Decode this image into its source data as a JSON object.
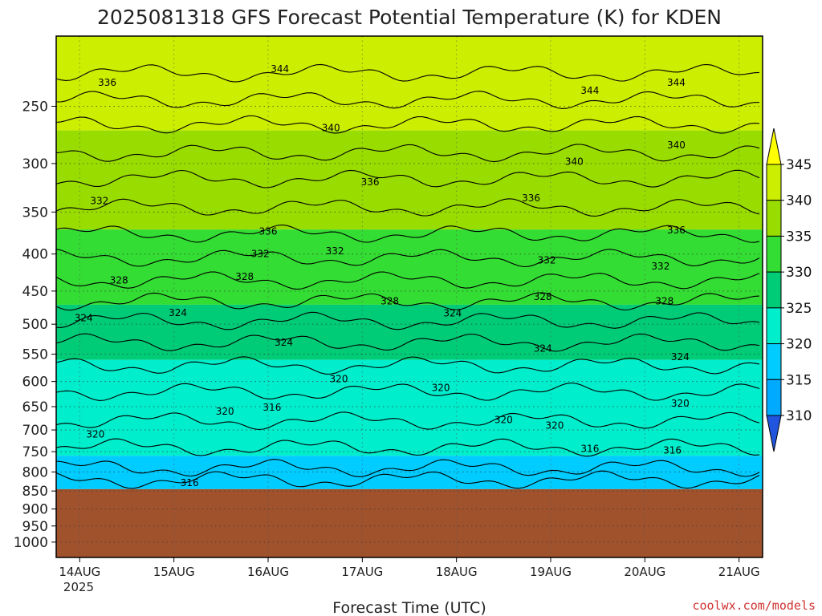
{
  "chart_data": {
    "type": "heatmap",
    "title": "2025081318 GFS Forecast Potential Temperature (K) for KDEN",
    "xlabel": "Forecast Time (UTC)",
    "ylabel": "",
    "x_ticks": [
      "14AUG",
      "15AUG",
      "16AUG",
      "17AUG",
      "18AUG",
      "19AUG",
      "20AUG",
      "21AUG"
    ],
    "x_year": "2025",
    "x_hours": [
      6,
      30,
      54,
      78,
      102,
      126,
      150,
      174
    ],
    "x_range_hours": [
      0,
      180
    ],
    "y_ticks": [
      "250",
      "300",
      "350",
      "400",
      "450",
      "500",
      "550",
      "600",
      "650",
      "700",
      "750",
      "800",
      "850",
      "900",
      "950",
      "1000"
    ],
    "y_range_hPa": [
      200,
      1050
    ],
    "y_scale": "log",
    "surface_pressure_hPa": 845,
    "grid": true,
    "legend": "right",
    "colorbar": {
      "ticks": [
        "345",
        "340",
        "335",
        "330",
        "325",
        "320",
        "315",
        "310"
      ],
      "colors": [
        "#ffff00",
        "#ccee00",
        "#99dd00",
        "#33dd33",
        "#00cc77",
        "#00eecc",
        "#00ccff",
        "#00aaff",
        "#0077ee",
        "#2255dd"
      ]
    },
    "contour_labels": [
      {
        "text": "344",
        "hour": 57,
        "p": 222
      },
      {
        "text": "336",
        "hour": 13,
        "p": 232
      },
      {
        "text": "344",
        "hour": 136,
        "p": 238
      },
      {
        "text": "344",
        "hour": 158,
        "p": 232
      },
      {
        "text": "340",
        "hour": 70,
        "p": 268
      },
      {
        "text": "340",
        "hour": 158,
        "p": 283
      },
      {
        "text": "340",
        "hour": 132,
        "p": 298
      },
      {
        "text": "336",
        "hour": 80,
        "p": 318
      },
      {
        "text": "336",
        "hour": 121,
        "p": 335
      },
      {
        "text": "332",
        "hour": 11,
        "p": 338
      },
      {
        "text": "336",
        "hour": 54,
        "p": 372
      },
      {
        "text": "336",
        "hour": 158,
        "p": 371
      },
      {
        "text": "332",
        "hour": 52,
        "p": 400
      },
      {
        "text": "332",
        "hour": 71,
        "p": 396
      },
      {
        "text": "332",
        "hour": 125,
        "p": 408
      },
      {
        "text": "332",
        "hour": 154,
        "p": 416
      },
      {
        "text": "328",
        "hour": 16,
        "p": 435
      },
      {
        "text": "328",
        "hour": 48,
        "p": 430
      },
      {
        "text": "328",
        "hour": 85,
        "p": 465
      },
      {
        "text": "328",
        "hour": 124,
        "p": 458
      },
      {
        "text": "328",
        "hour": 155,
        "p": 465
      },
      {
        "text": "324",
        "hour": 7,
        "p": 490
      },
      {
        "text": "324",
        "hour": 31,
        "p": 482
      },
      {
        "text": "324",
        "hour": 101,
        "p": 483
      },
      {
        "text": "324",
        "hour": 58,
        "p": 530
      },
      {
        "text": "324",
        "hour": 124,
        "p": 540
      },
      {
        "text": "324",
        "hour": 159,
        "p": 555
      },
      {
        "text": "320",
        "hour": 72,
        "p": 595
      },
      {
        "text": "320",
        "hour": 98,
        "p": 612
      },
      {
        "text": "320",
        "hour": 43,
        "p": 660
      },
      {
        "text": "316",
        "hour": 55,
        "p": 652
      },
      {
        "text": "320",
        "hour": 114,
        "p": 678
      },
      {
        "text": "320",
        "hour": 159,
        "p": 643
      },
      {
        "text": "320",
        "hour": 10,
        "p": 710
      },
      {
        "text": "320",
        "hour": 127,
        "p": 690
      },
      {
        "text": "316",
        "hour": 136,
        "p": 743
      },
      {
        "text": "316",
        "hour": 157,
        "p": 747
      },
      {
        "text": "316",
        "hour": 34,
        "p": 828
      }
    ],
    "regions": [
      {
        "p_top": 200,
        "p_bottom": 270,
        "theta": 341
      },
      {
        "p_top": 270,
        "p_bottom": 370,
        "theta": 336
      },
      {
        "p_top": 370,
        "p_bottom": 470,
        "theta": 331
      },
      {
        "p_top": 470,
        "p_bottom": 560,
        "theta": 326
      },
      {
        "p_top": 560,
        "p_bottom": 760,
        "theta": 321
      },
      {
        "p_top": 760,
        "p_bottom": 845,
        "theta": 316
      }
    ]
  },
  "credit": "coolwx.com/models",
  "colors": {
    "ground": "#a0522d",
    "contour": "#000000",
    "grid": "#999999"
  }
}
